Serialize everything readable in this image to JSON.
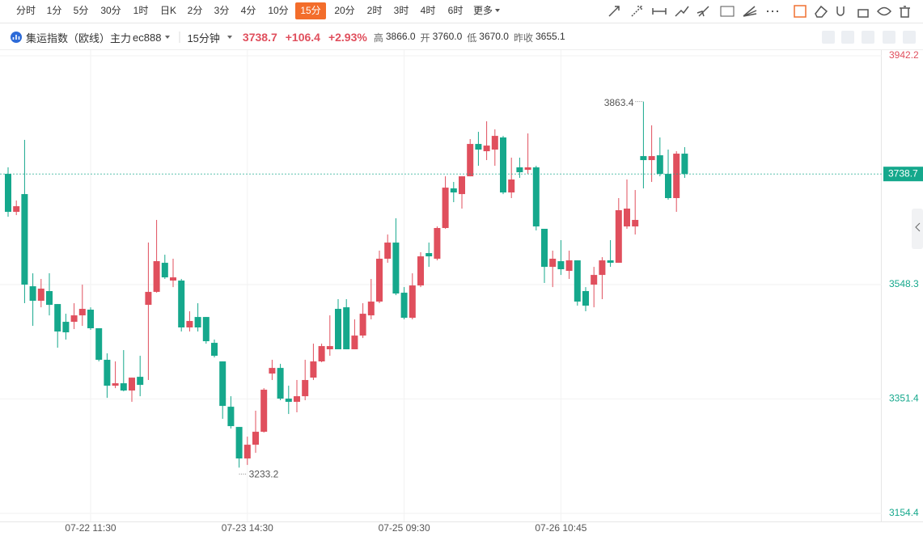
{
  "toolbar": {
    "periods": [
      "分时",
      "1分",
      "5分",
      "30分",
      "1时",
      "日K",
      "2分",
      "3分",
      "4分",
      "10分",
      "15分",
      "20分",
      "2时",
      "3时",
      "4时",
      "6时",
      "更多"
    ],
    "active": 10
  },
  "header": {
    "name": "集运指数（欧线）主力",
    "code": "ec888",
    "interval": "15分钟",
    "change": "+106.4",
    "change_pct": "+2.93%",
    "stats": [
      {
        "label": "高",
        "value": "3866.0"
      },
      {
        "label": "开",
        "value": "3760.0"
      },
      {
        "label": "低",
        "value": "3670.0"
      },
      {
        "label": "昨收",
        "value": "3655.1"
      }
    ]
  },
  "chart_data": {
    "type": "candlestick",
    "categories": [
      null,
      null,
      null,
      null,
      null,
      null,
      null,
      null,
      null,
      null,
      "07-22 11:30",
      null,
      null,
      null,
      null,
      null,
      null,
      null,
      null,
      null,
      null,
      null,
      null,
      null,
      null,
      null,
      null,
      null,
      null,
      "07-23 14:30",
      null,
      null,
      null,
      null,
      null,
      null,
      null,
      null,
      null,
      null,
      null,
      null,
      null,
      null,
      null,
      null,
      null,
      null,
      "07-25 09:30",
      null,
      null,
      null,
      null,
      null,
      null,
      null,
      null,
      null,
      null,
      null,
      null,
      null,
      null,
      null,
      null,
      null,
      null,
      "07-26 10:45",
      null,
      null,
      null,
      null,
      null,
      null,
      null,
      null,
      null,
      null,
      null,
      null,
      null,
      null,
      null
    ],
    "open": [
      3738.9,
      3673.5,
      3704.1,
      3545.4,
      3520.4,
      3537.1,
      3514.8,
      3484.2,
      3484.2,
      3495.3,
      3505.1,
      3473.1,
      3418.8,
      3374.2,
      3378.4,
      3365.9,
      3389.5,
      3513.4,
      3535.7,
      3585.8,
      3555.2,
      3555.2,
      3474.5,
      3492.5,
      3492.5,
      3448.0,
      3416.0,
      3338.0,
      3303.2,
      3248.9,
      3272.6,
      3294.9,
      3395.1,
      3404.8,
      3352.0,
      3346.4,
      3356.1,
      3388.1,
      3416.0,
      3436.9,
      3506.5,
      3509.2,
      3436.9,
      3460.5,
      3495.3,
      3519.0,
      3592.8,
      3620.6,
      3534.3,
      3491.1,
      3546.8,
      3602.5,
      3592.8,
      3645.7,
      3713.9,
      3704.1,
      3734.7,
      3790.4,
      3777.9,
      3780.7,
      3801.6,
      3706.9,
      3750.1,
      3745.9,
      3750.1,
      3644.3,
      3578.8,
      3588.6,
      3571.9,
      3590.0,
      3537.1,
      3548.2,
      3564.9,
      3590.0,
      3585.8,
      3648.4,
      3648.4,
      3769.5,
      3762.6,
      3770.9,
      3738.9,
      3697.2,
      3773.7
    ],
    "high": [
      3750.1,
      3693.0,
      3797.4,
      3567.7,
      3558.0,
      3567.7,
      3514.8,
      3498.1,
      3516.2,
      3548.2,
      3509.2,
      3473.1,
      3429.9,
      3416.0,
      3435.5,
      3388.1,
      3425.7,
      3620.6,
      3659.6,
      3599.7,
      3592.8,
      3558.0,
      3502.3,
      3516.2,
      3492.5,
      3453.6,
      3416.0,
      3356.1,
      3303.2,
      3286.5,
      3331.1,
      3370.0,
      3418.8,
      3411.8,
      3374.2,
      3384.0,
      3418.8,
      3446.6,
      3446.6,
      3495.3,
      3523.2,
      3523.2,
      3488.4,
      3516.2,
      3558.0,
      3606.7,
      3634.5,
      3662.4,
      3544.0,
      3567.7,
      3603.9,
      3620.6,
      3648.4,
      3734.7,
      3725.0,
      3734.7,
      3798.8,
      3811.3,
      3829.4,
      3815.5,
      3804.3,
      3766.8,
      3766.8,
      3808.5,
      3752.8,
      3644.3,
      3606.7,
      3624.8,
      3606.7,
      3590.0,
      3544.0,
      3578.8,
      3595.5,
      3624.8,
      3697.2,
      3729.2,
      3711.1,
      3863.4,
      3822.4,
      3801.6,
      3780.7,
      3777.9,
      3784.9
    ],
    "low": [
      3665.1,
      3667.9,
      3516.2,
      3477.2,
      3509.2,
      3495.3,
      3439.6,
      3453.6,
      3471.7,
      3477.2,
      3470.3,
      3416.0,
      3353.3,
      3370.0,
      3364.5,
      3346.4,
      3356.1,
      3384.0,
      3534.3,
      3558.0,
      3544.0,
      3467.5,
      3467.5,
      3467.5,
      3446.6,
      3422.9,
      3317.1,
      3300.4,
      3233.2,
      3237.8,
      3258.7,
      3293.5,
      3384.0,
      3349.2,
      3325.5,
      3328.3,
      3349.2,
      3384.0,
      3414.6,
      3425.7,
      3436.9,
      3436.9,
      3436.9,
      3456.3,
      3488.4,
      3516.2,
      3585.8,
      3530.1,
      3488.4,
      3488.4,
      3544.0,
      3578.8,
      3590.0,
      3644.3,
      3690.2,
      3679.1,
      3734.7,
      3752.8,
      3762.6,
      3752.8,
      3704.1,
      3697.2,
      3732.0,
      3738.9,
      3641.5,
      3551.0,
      3544.0,
      3564.9,
      3558.0,
      3512.0,
      3502.3,
      3509.2,
      3523.2,
      3578.8,
      3585.8,
      3644.3,
      3634.5,
      3713.9,
      3725.0,
      3734.7,
      3694.4,
      3673.5,
      3732.0
    ],
    "close": [
      3673.5,
      3683.2,
      3548.2,
      3520.4,
      3541.3,
      3513.4,
      3467.5,
      3466.1,
      3495.3,
      3506.5,
      3473.1,
      3418.8,
      3374.2,
      3378.4,
      3365.9,
      3388.1,
      3375.6,
      3535.7,
      3588.6,
      3560.7,
      3560.7,
      3474.5,
      3485.6,
      3474.5,
      3450.8,
      3425.7,
      3339.4,
      3304.6,
      3248.9,
      3272.6,
      3294.9,
      3367.3,
      3404.8,
      3352.0,
      3346.4,
      3356.1,
      3384.0,
      3416.0,
      3442.4,
      3442.4,
      3436.9,
      3436.9,
      3460.5,
      3498.1,
      3519.0,
      3592.8,
      3620.6,
      3532.9,
      3491.1,
      3546.8,
      3596.9,
      3596.9,
      3645.7,
      3715.2,
      3706.9,
      3734.7,
      3790.4,
      3780.7,
      3787.6,
      3804.3,
      3706.9,
      3729.2,
      3741.7,
      3750.1,
      3648.4,
      3578.8,
      3592.8,
      3574.7,
      3590.0,
      3519.0,
      3512.0,
      3564.9,
      3590.0,
      3585.8,
      3676.3,
      3679.1,
      3659.6,
      3762.6,
      3769.5,
      3738.9,
      3697.2,
      3773.7,
      3738.7
    ],
    "up_color": "#e04f5d",
    "down_color": "#15a88c",
    "ylim": [
      3154.4,
      3942.2
    ],
    "yticks": [
      3154.4,
      3351.4,
      3548.3,
      3942.2
    ],
    "grid": true
  }
}
